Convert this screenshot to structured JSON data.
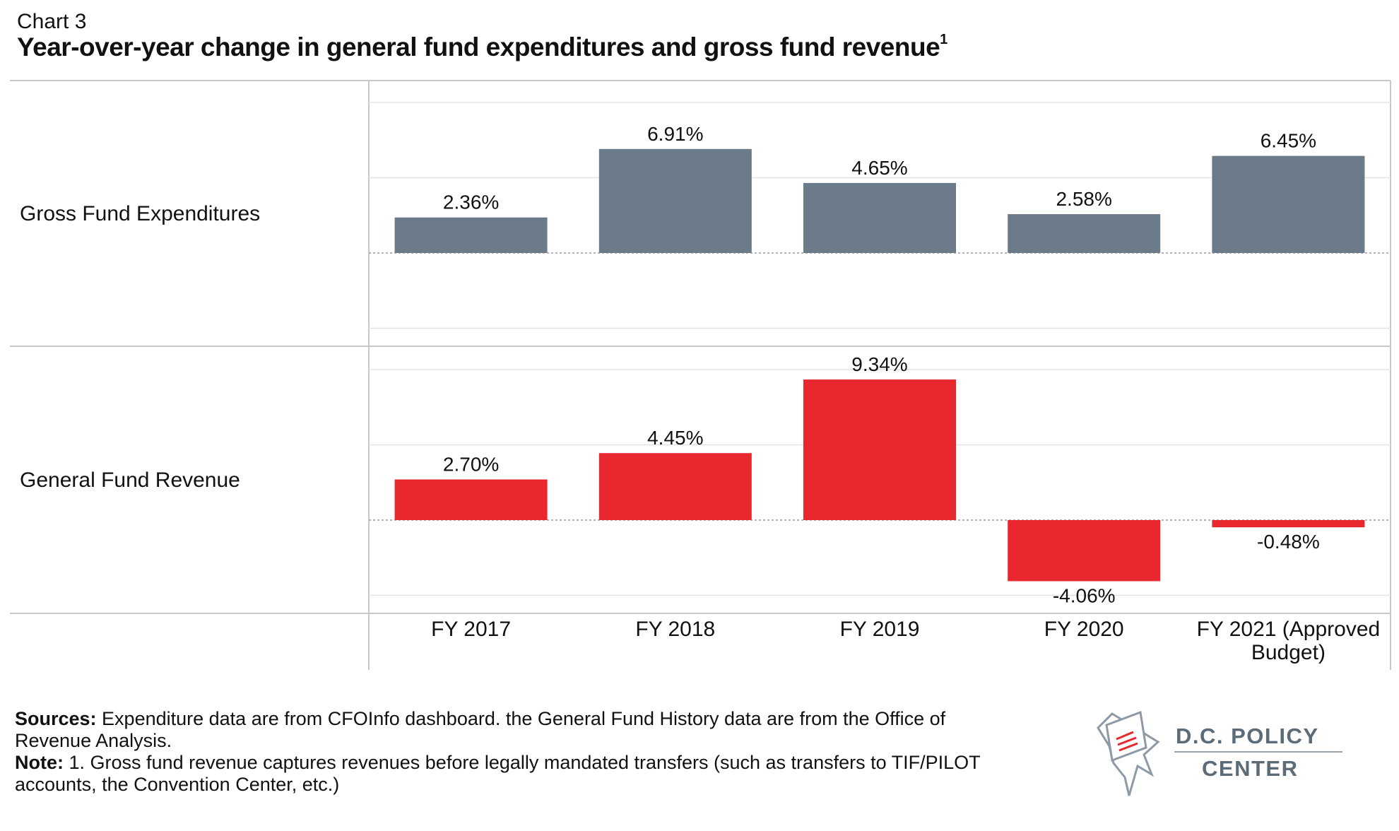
{
  "header": {
    "label": "Chart 3",
    "title": "Year-over-year change in general fund expenditures and gross fund revenue",
    "title_superscript": "1"
  },
  "chart_data": {
    "type": "bar",
    "categories": [
      "FY 2017",
      "FY 2018",
      "FY 2019",
      "FY 2020",
      "FY 2021 (Approved Budget)"
    ],
    "category_lines": [
      [
        "FY 2017"
      ],
      [
        "FY 2018"
      ],
      [
        "FY 2019"
      ],
      [
        "FY 2020"
      ],
      [
        "FY 2021 (Approved",
        "Budget)"
      ]
    ],
    "panels": [
      {
        "name": "Gross Fund Expenditures",
        "color": "#6b7b8a",
        "values": [
          2.36,
          6.91,
          4.65,
          2.58,
          6.45
        ],
        "labels": [
          "2.36%",
          "6.91%",
          "4.65%",
          "2.58%",
          "6.45%"
        ]
      },
      {
        "name": "General Fund Revenue",
        "color": "#e8282e",
        "values": [
          2.7,
          4.45,
          9.34,
          -4.06,
          -0.48
        ],
        "labels": [
          "2.70%",
          "4.45%",
          "9.34%",
          "-4.06%",
          "-0.48%"
        ]
      }
    ],
    "ylim": [
      -5,
      10
    ],
    "grid": true,
    "unit": "%"
  },
  "footnotes": {
    "sources_label": "Sources:",
    "sources_text": " Expenditure data are from CFOInfo dashboard. the General Fund History data are from the Office of Revenue Analysis.",
    "note_label": "Note:",
    "note_text": " 1. Gross fund revenue captures revenues before legally mandated transfers (such as transfers to TIF/PILOT accounts, the Convention Center, etc.)"
  },
  "logo": {
    "line1": "D.C. POLICY",
    "line2": "CENTER",
    "icon": "dc-map-document-icon",
    "colors": {
      "text": "#5b6b78",
      "accent": "#e8282e"
    }
  }
}
